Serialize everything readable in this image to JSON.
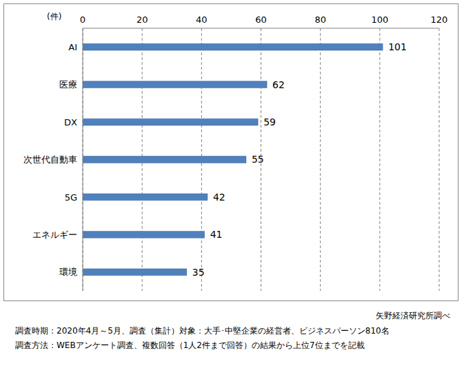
{
  "chart_data": {
    "type": "bar",
    "orientation": "horizontal",
    "x_label": "(件)",
    "categories": [
      "AI",
      "医療",
      "DX",
      "次世代自動車",
      "5G",
      "エネルギー",
      "環境"
    ],
    "values": [
      101,
      62,
      59,
      55,
      42,
      41,
      35
    ],
    "color": "#4f81bd",
    "xlim": [
      0,
      120
    ],
    "xticks": [
      0,
      20,
      40,
      60,
      80,
      100,
      120
    ],
    "grid": true,
    "data_labels": true,
    "annotations": [
      "矢野経済研究所調べ",
      "調査時期：2020年4月～5月、調査（集計）対象：大手･中堅企業の経営者、ビジネスパーソン810名",
      "調査方法：WEBアンケート調査、複数回答（1人2件まで回答）の結果から上位7位までを記載"
    ]
  }
}
